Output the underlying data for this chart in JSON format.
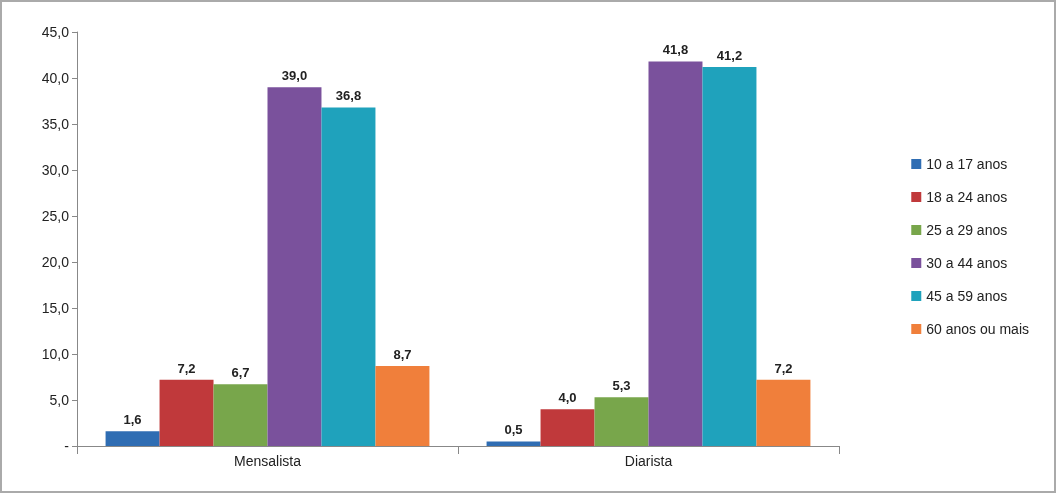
{
  "chart_data": {
    "type": "bar",
    "categories": [
      "Mensalista",
      "Diarista"
    ],
    "series": [
      {
        "name": "10 a 17 anos",
        "color": "#2f6db3",
        "values": [
          1.6,
          0.5
        ],
        "value_labels": [
          "1,6",
          "0,5"
        ]
      },
      {
        "name": "18 a 24 anos",
        "color": "#c0393b",
        "values": [
          7.2,
          4.0
        ],
        "value_labels": [
          "7,2",
          "4,0"
        ]
      },
      {
        "name": "25 a 29 anos",
        "color": "#78a64b",
        "values": [
          6.7,
          5.3
        ],
        "value_labels": [
          "6,7",
          "5,3"
        ]
      },
      {
        "name": "30 a 44 anos",
        "color": "#7a519c",
        "values": [
          39.0,
          41.8
        ],
        "value_labels": [
          "39,0",
          "41,8"
        ]
      },
      {
        "name": "45 a 59 anos",
        "color": "#1fa2bc",
        "values": [
          36.8,
          41.2
        ],
        "value_labels": [
          "36,8",
          "41,2"
        ]
      },
      {
        "name": "60 anos ou mais",
        "color": "#f07f3b",
        "values": [
          8.7,
          7.2
        ],
        "value_labels": [
          "8,7",
          "7,2"
        ]
      }
    ],
    "ylim": [
      0,
      45
    ],
    "yticks": [
      {
        "value": 0,
        "label": "-"
      },
      {
        "value": 5,
        "label": "5,0"
      },
      {
        "value": 10,
        "label": "10,0"
      },
      {
        "value": 15,
        "label": "15,0"
      },
      {
        "value": 20,
        "label": "20,0"
      },
      {
        "value": 25,
        "label": "25,0"
      },
      {
        "value": 30,
        "label": "30,0"
      },
      {
        "value": 35,
        "label": "35,0"
      },
      {
        "value": 40,
        "label": "40,0"
      },
      {
        "value": 45,
        "label": "45,0"
      }
    ],
    "grid": false,
    "legend": "right"
  }
}
